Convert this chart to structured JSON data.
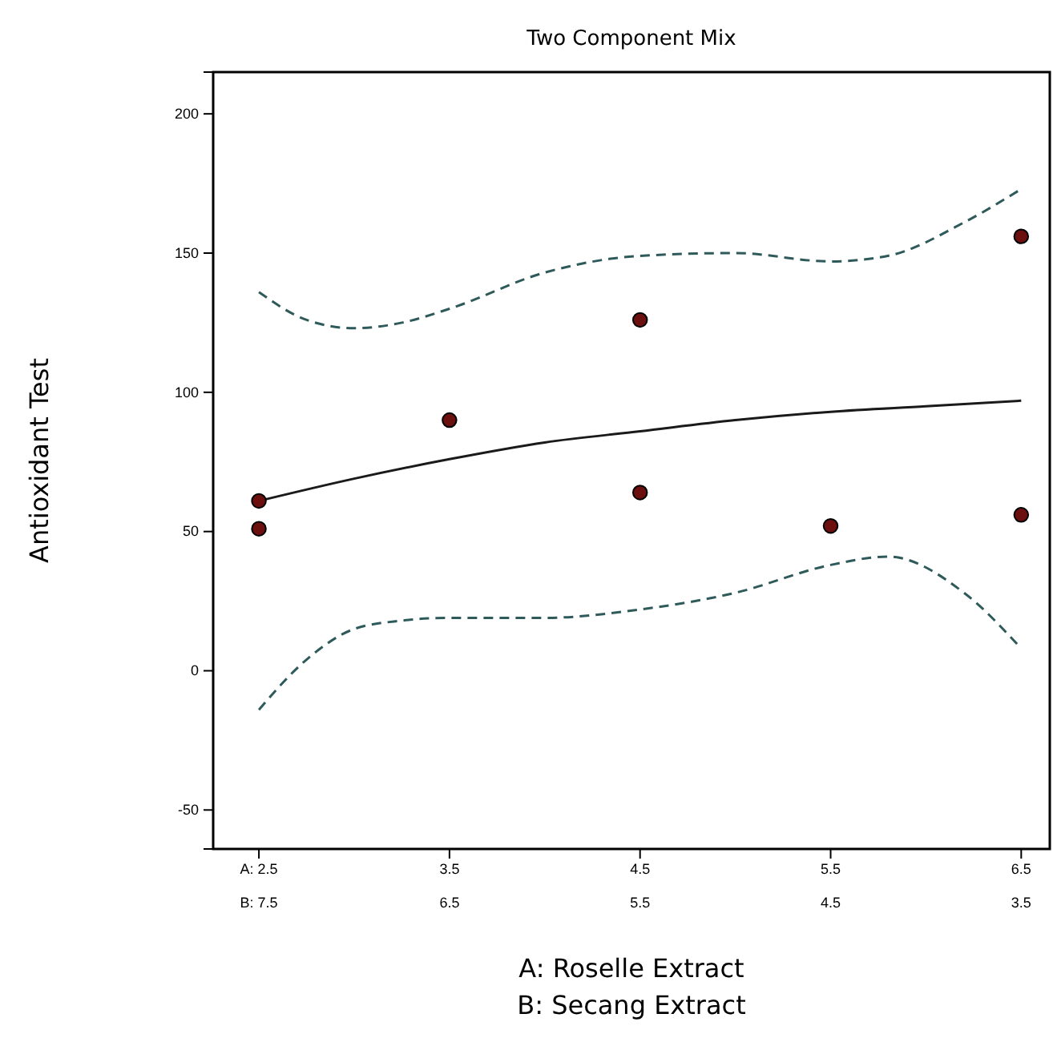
{
  "chart_data": {
    "type": "scatter",
    "title": "Two Component Mix",
    "xlabel": "A: Roselle Extract",
    "x2label": "B: Secang Extract",
    "ylabel": "Antioxidant Test",
    "xlim": [
      2.26,
      6.65
    ],
    "xticks": [
      {
        "value": 2.5,
        "label": "A: 2.5"
      },
      3.5,
      4.5,
      5.5,
      6.5
    ],
    "x2lim": [
      7.74,
      3.35
    ],
    "x2ticks": [
      {
        "value": 7.5,
        "label": "B: 7.5"
      },
      6.5,
      5.5,
      4.5,
      3.5
    ],
    "ylim": [
      -64,
      215
    ],
    "yticks": [
      -50,
      0,
      50,
      100,
      150,
      200
    ],
    "grid": false,
    "series": [
      {
        "type": "line",
        "color": "#1a1a1a",
        "line_style": "solid",
        "marker": "none",
        "x": [
          2.5,
          3.0,
          3.5,
          4.0,
          4.5,
          5.0,
          5.5,
          6.0,
          6.5
        ],
        "values": [
          61,
          69,
          76,
          82,
          86,
          90,
          93,
          95,
          97
        ]
      },
      {
        "type": "line",
        "color": "#2f5a5a",
        "line_style": "dashed",
        "marker": "none",
        "x": [
          2.5,
          2.75,
          3.0,
          3.25,
          3.5,
          4.0,
          4.5,
          5.0,
          5.5,
          5.8,
          6.2,
          6.5
        ],
        "values": [
          136,
          126,
          123,
          125,
          130,
          143,
          149,
          150,
          147,
          149,
          161,
          173
        ]
      },
      {
        "type": "line",
        "color": "#2f5a5a",
        "line_style": "dashed",
        "marker": "none",
        "x": [
          2.5,
          2.75,
          3.0,
          3.25,
          3.5,
          4.0,
          4.5,
          5.0,
          5.5,
          5.8,
          6.2,
          6.5
        ],
        "values": [
          -14,
          4,
          15,
          18,
          19,
          19,
          22,
          28,
          38,
          41,
          28,
          8
        ]
      },
      {
        "color": "#6b0f0f",
        "marker": "circle",
        "x": [
          2.5,
          2.5,
          3.5,
          4.5,
          4.5,
          5.5,
          6.5,
          6.5
        ],
        "values": [
          61,
          51,
          90,
          126,
          64,
          52,
          156,
          56
        ]
      }
    ]
  }
}
